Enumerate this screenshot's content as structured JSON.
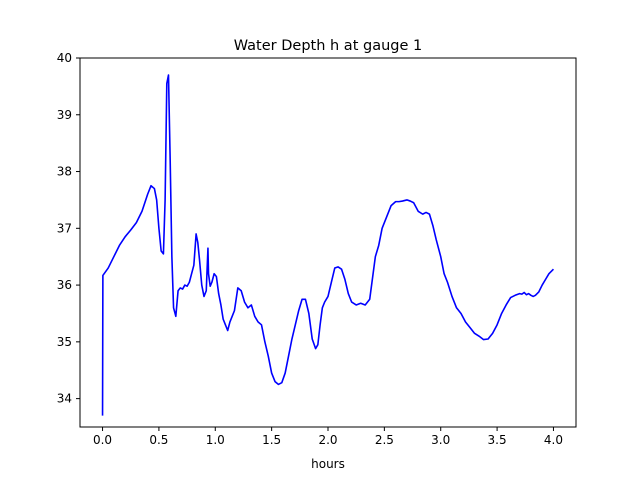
{
  "chart_data": {
    "type": "line",
    "title": "Water Depth h at gauge 1",
    "xlabel": "hours",
    "ylabel": "",
    "xlim": [
      -0.2,
      4.2
    ],
    "ylim": [
      33.5,
      40
    ],
    "xticks": [
      0.0,
      0.5,
      1.0,
      1.5,
      2.0,
      2.5,
      3.0,
      3.5,
      4.0
    ],
    "xtick_labels": [
      "0.0",
      "0.5",
      "1.0",
      "1.5",
      "2.0",
      "2.5",
      "3.0",
      "3.5",
      "4.0"
    ],
    "yticks": [
      34,
      35,
      36,
      37,
      38,
      39,
      40
    ],
    "ytick_labels": [
      "34",
      "35",
      "36",
      "37",
      "38",
      "39",
      "40"
    ],
    "grid": false,
    "legend": "none",
    "series": [
      {
        "color": "#0000ff",
        "x": [
          0.0,
          0.003,
          0.05,
          0.1,
          0.15,
          0.2,
          0.25,
          0.3,
          0.35,
          0.4,
          0.43,
          0.46,
          0.48,
          0.5,
          0.52,
          0.54,
          0.555,
          0.57,
          0.585,
          0.6,
          0.615,
          0.63,
          0.65,
          0.67,
          0.69,
          0.71,
          0.73,
          0.75,
          0.77,
          0.79,
          0.81,
          0.83,
          0.845,
          0.86,
          0.88,
          0.9,
          0.92,
          0.935,
          0.94,
          0.955,
          0.97,
          0.99,
          1.01,
          1.03,
          1.05,
          1.07,
          1.09,
          1.11,
          1.13,
          1.15,
          1.17,
          1.2,
          1.23,
          1.26,
          1.29,
          1.32,
          1.35,
          1.38,
          1.41,
          1.44,
          1.47,
          1.5,
          1.53,
          1.56,
          1.59,
          1.62,
          1.65,
          1.68,
          1.71,
          1.74,
          1.77,
          1.8,
          1.83,
          1.86,
          1.89,
          1.91,
          1.93,
          1.95,
          1.97,
          2.0,
          2.03,
          2.06,
          2.09,
          2.12,
          2.15,
          2.18,
          2.21,
          2.25,
          2.29,
          2.33,
          2.37,
          2.4,
          2.42,
          2.45,
          2.48,
          2.52,
          2.56,
          2.6,
          2.63,
          2.66,
          2.7,
          2.73,
          2.76,
          2.8,
          2.84,
          2.87,
          2.9,
          2.93,
          2.96,
          3.0,
          3.03,
          3.06,
          3.1,
          3.14,
          3.18,
          3.22,
          3.26,
          3.3,
          3.34,
          3.38,
          3.42,
          3.46,
          3.5,
          3.54,
          3.58,
          3.62,
          3.66,
          3.7,
          3.72,
          3.74,
          3.76,
          3.78,
          3.8,
          3.82,
          3.84,
          3.87,
          3.9,
          3.93,
          3.96,
          4.0
        ],
        "y": [
          33.7,
          36.17,
          36.3,
          36.5,
          36.7,
          36.85,
          36.97,
          37.1,
          37.3,
          37.6,
          37.75,
          37.7,
          37.5,
          37.0,
          36.6,
          36.55,
          37.5,
          39.55,
          39.7,
          38.2,
          36.5,
          35.6,
          35.45,
          35.9,
          35.95,
          35.93,
          36.0,
          35.98,
          36.05,
          36.2,
          36.35,
          36.9,
          36.75,
          36.45,
          36.0,
          35.8,
          35.9,
          36.65,
          36.2,
          35.98,
          36.05,
          36.2,
          36.15,
          35.85,
          35.65,
          35.4,
          35.3,
          35.2,
          35.35,
          35.45,
          35.55,
          35.95,
          35.9,
          35.7,
          35.6,
          35.65,
          35.45,
          35.35,
          35.3,
          35.0,
          34.75,
          34.45,
          34.3,
          34.25,
          34.28,
          34.45,
          34.75,
          35.05,
          35.3,
          35.55,
          35.75,
          35.75,
          35.5,
          35.05,
          34.88,
          34.95,
          35.3,
          35.6,
          35.7,
          35.8,
          36.05,
          36.3,
          36.32,
          36.28,
          36.1,
          35.85,
          35.7,
          35.65,
          35.68,
          35.65,
          35.75,
          36.2,
          36.5,
          36.7,
          37.0,
          37.2,
          37.4,
          37.47,
          37.47,
          37.48,
          37.5,
          37.48,
          37.45,
          37.3,
          37.25,
          37.28,
          37.25,
          37.05,
          36.8,
          36.5,
          36.2,
          36.05,
          35.8,
          35.6,
          35.5,
          35.35,
          35.25,
          35.15,
          35.1,
          35.04,
          35.05,
          35.15,
          35.3,
          35.5,
          35.65,
          35.78,
          35.82,
          35.85,
          35.84,
          35.87,
          35.83,
          35.85,
          35.82,
          35.8,
          35.82,
          35.88,
          36.0,
          36.1,
          36.2,
          36.28
        ]
      }
    ]
  }
}
